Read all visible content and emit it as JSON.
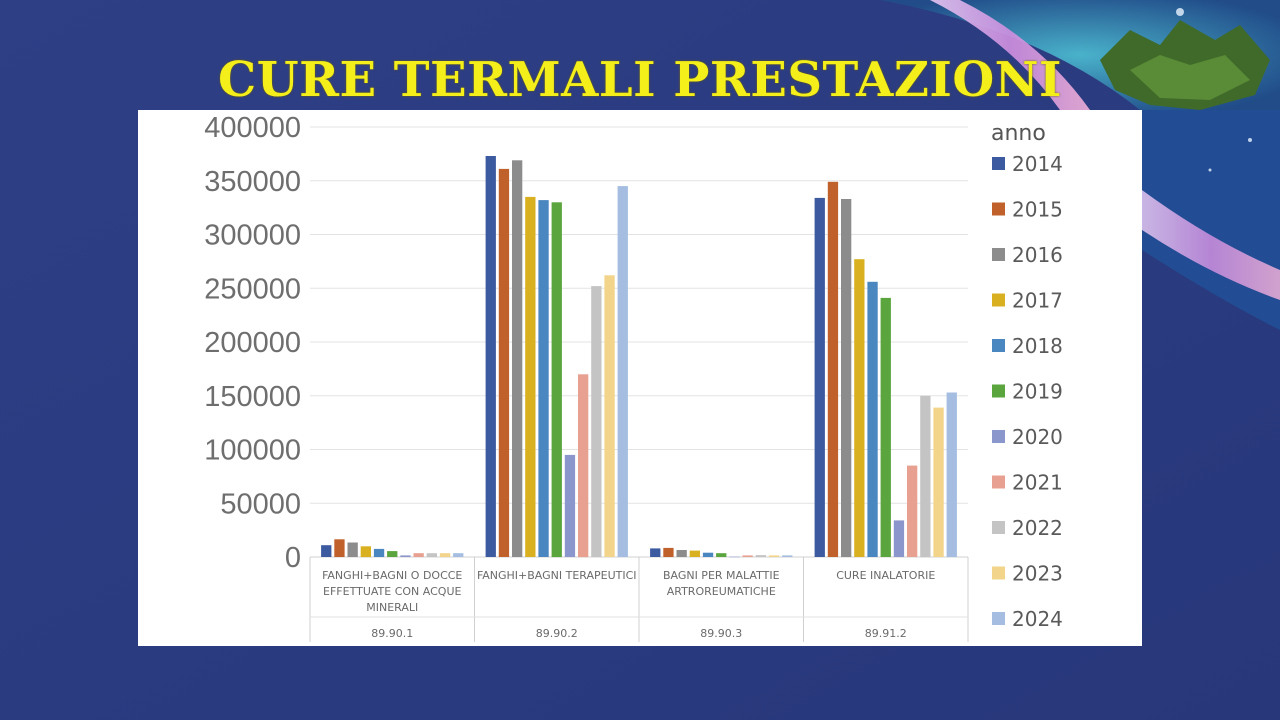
{
  "slide": {
    "title": "CURE TERMALI PRESTAZIONI"
  },
  "chart_data": {
    "type": "bar",
    "ylim": [
      0,
      400000
    ],
    "yticks": [
      0,
      50000,
      100000,
      150000,
      200000,
      250000,
      300000,
      350000,
      400000
    ],
    "grid": true,
    "legend_title": "anno",
    "legend_position": "right",
    "categories": [
      {
        "label": [
          "FANGHI+BAGNI O DOCCE",
          "EFFETTUATE CON ACQUE",
          "MINERALI"
        ],
        "code": "89.90.1"
      },
      {
        "label": [
          "FANGHI+BAGNI TERAPEUTICI"
        ],
        "code": "89.90.2"
      },
      {
        "label": [
          "BAGNI PER MALATTIE",
          "ARTROREUMATICHE"
        ],
        "code": "89.90.3"
      },
      {
        "label": [
          "CURE INALATORIE"
        ],
        "code": "89.91.2"
      }
    ],
    "series": [
      {
        "name": "2014",
        "color": "#3b5aa0",
        "values": [
          11000,
          373000,
          8000,
          334000
        ]
      },
      {
        "name": "2015",
        "color": "#c0602a",
        "values": [
          16500,
          361000,
          8500,
          349000
        ]
      },
      {
        "name": "2016",
        "color": "#8c8c8c",
        "values": [
          13500,
          369000,
          6500,
          333000
        ]
      },
      {
        "name": "2017",
        "color": "#d8b020",
        "values": [
          10000,
          335000,
          6000,
          277000
        ]
      },
      {
        "name": "2018",
        "color": "#4a86c0",
        "values": [
          7500,
          332000,
          4000,
          256000
        ]
      },
      {
        "name": "2019",
        "color": "#5aa53e",
        "values": [
          5500,
          330000,
          3500,
          241000
        ]
      },
      {
        "name": "2020",
        "color": "#8a96cc",
        "values": [
          1500,
          95000,
          300,
          34000
        ]
      },
      {
        "name": "2021",
        "color": "#e8a090",
        "values": [
          3500,
          170000,
          1500,
          85000
        ]
      },
      {
        "name": "2022",
        "color": "#c4c4c4",
        "values": [
          3500,
          252000,
          1800,
          150000
        ]
      },
      {
        "name": "2023",
        "color": "#f2d48a",
        "values": [
          3500,
          262000,
          1500,
          139000
        ]
      },
      {
        "name": "2024",
        "color": "#a4bde0",
        "values": [
          3500,
          345000,
          1500,
          153000
        ]
      }
    ]
  }
}
